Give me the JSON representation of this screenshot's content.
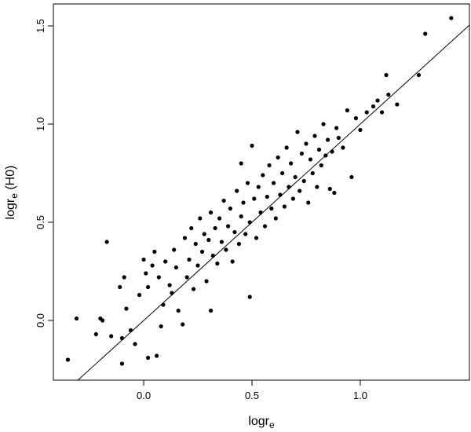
{
  "chart_data": {
    "type": "scatter",
    "xlabel": "logr",
    "xlabel_sub": "e",
    "ylabel": "logr",
    "ylabel_sub": "e",
    "ylabel_suffix": " (H0)",
    "xlim": [
      -0.417,
      1.504
    ],
    "ylim": [
      -0.304,
      1.612
    ],
    "xticks": [
      {
        "value": 0,
        "label": "0.0"
      },
      {
        "value": 0.5,
        "label": "0.5"
      },
      {
        "value": 1,
        "label": "1.0"
      }
    ],
    "yticks": [
      {
        "value": 0,
        "label": "0.0"
      },
      {
        "value": 0.5,
        "label": "0.5"
      },
      {
        "value": 1,
        "label": "1.0"
      },
      {
        "value": 1.5,
        "label": "1.5"
      }
    ],
    "color": "#000000",
    "reference_line": {
      "intercept": 0,
      "slope": 1
    },
    "x": [
      -0.35,
      -0.31,
      -0.22,
      -0.2,
      -0.19,
      -0.17,
      -0.15,
      -0.11,
      -0.1,
      -0.1,
      -0.09,
      -0.08,
      -0.06,
      -0.04,
      -0.02,
      0.0,
      0.01,
      0.02,
      0.02,
      0.04,
      0.05,
      0.06,
      0.07,
      0.08,
      0.09,
      0.1,
      0.12,
      0.13,
      0.14,
      0.15,
      0.16,
      0.18,
      0.19,
      0.2,
      0.21,
      0.22,
      0.23,
      0.24,
      0.25,
      0.26,
      0.27,
      0.28,
      0.29,
      0.3,
      0.31,
      0.31,
      0.32,
      0.33,
      0.34,
      0.35,
      0.36,
      0.37,
      0.38,
      0.39,
      0.4,
      0.41,
      0.42,
      0.43,
      0.44,
      0.45,
      0.45,
      0.46,
      0.47,
      0.48,
      0.49,
      0.49,
      0.5,
      0.51,
      0.52,
      0.53,
      0.54,
      0.55,
      0.56,
      0.57,
      0.58,
      0.59,
      0.6,
      0.61,
      0.62,
      0.63,
      0.64,
      0.65,
      0.66,
      0.67,
      0.68,
      0.69,
      0.7,
      0.71,
      0.72,
      0.73,
      0.74,
      0.75,
      0.76,
      0.77,
      0.78,
      0.79,
      0.8,
      0.81,
      0.82,
      0.83,
      0.84,
      0.85,
      0.86,
      0.87,
      0.88,
      0.89,
      0.9,
      0.92,
      0.94,
      0.96,
      0.98,
      1.0,
      1.03,
      1.06,
      1.08,
      1.1,
      1.12,
      1.13,
      1.17,
      1.27,
      1.3,
      1.42
    ],
    "y": [
      -0.2,
      0.01,
      -0.07,
      0.01,
      0.0,
      0.4,
      -0.08,
      0.17,
      -0.22,
      -0.09,
      0.22,
      0.06,
      -0.05,
      -0.12,
      0.13,
      0.31,
      0.24,
      -0.19,
      0.17,
      0.28,
      0.35,
      -0.18,
      0.22,
      -0.03,
      0.08,
      0.3,
      0.18,
      0.14,
      0.36,
      0.27,
      0.05,
      -0.02,
      0.42,
      0.22,
      0.31,
      0.47,
      0.16,
      0.39,
      0.28,
      0.52,
      0.35,
      0.44,
      0.2,
      0.41,
      0.05,
      0.55,
      0.33,
      0.47,
      0.29,
      0.52,
      0.4,
      0.61,
      0.36,
      0.48,
      0.57,
      0.3,
      0.45,
      0.66,
      0.39,
      0.8,
      0.53,
      0.6,
      0.44,
      0.7,
      0.12,
      0.5,
      0.89,
      0.62,
      0.42,
      0.68,
      0.55,
      0.74,
      0.48,
      0.63,
      0.79,
      0.57,
      0.7,
      0.52,
      0.83,
      0.64,
      0.75,
      0.58,
      0.88,
      0.68,
      0.8,
      0.62,
      0.73,
      0.96,
      0.66,
      0.85,
      0.71,
      0.9,
      0.6,
      0.82,
      0.75,
      0.94,
      0.68,
      0.87,
      0.79,
      1.0,
      0.84,
      0.92,
      0.67,
      0.86,
      0.65,
      0.98,
      0.93,
      0.88,
      1.07,
      0.73,
      1.03,
      0.97,
      1.06,
      1.09,
      1.12,
      1.06,
      1.25,
      1.15,
      1.1,
      1.25,
      1.46,
      1.54
    ]
  }
}
